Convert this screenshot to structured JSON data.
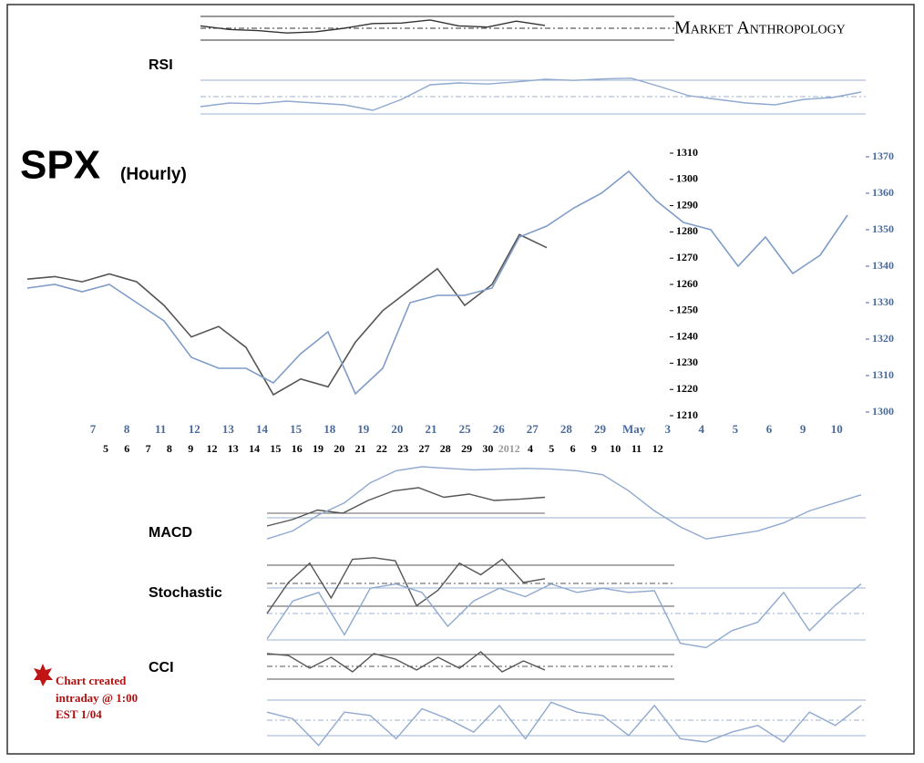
{
  "brand": "Market Anthropology",
  "note": [
    "Chart created",
    "intraday @ 1:00",
    "EST 1/04"
  ],
  "chart_data": {
    "type": "line",
    "title": "SPX",
    "subtitle": "(Hourly)",
    "ylim": [
      1210,
      1310
    ],
    "yticks": [
      1210,
      1220,
      1230,
      1240,
      1250,
      1260,
      1270,
      1280,
      1290,
      1300,
      1310
    ],
    "y2lim": [
      1300,
      1370
    ],
    "y2ticks": [
      1300,
      1310,
      1320,
      1330,
      1340,
      1350,
      1360,
      1370
    ],
    "x_labels_top": [
      "7",
      "8",
      "11",
      "12",
      "13",
      "14",
      "15",
      "18",
      "19",
      "20",
      "21",
      "25",
      "26",
      "27",
      "28",
      "29",
      "May",
      "3",
      "4",
      "5",
      "6",
      "9",
      "10"
    ],
    "x_labels_bottom": [
      "5",
      "6",
      "7",
      "8",
      "9",
      "12",
      "13",
      "14",
      "15",
      "16",
      "19",
      "20",
      "21",
      "22",
      "23",
      "27",
      "28",
      "29",
      "30",
      "2012",
      "4",
      "5",
      "6",
      "9",
      "10",
      "11",
      "12"
    ],
    "series": [
      {
        "color": "#555555",
        "values": [
          1262,
          1263,
          1261,
          1264,
          1261,
          1252,
          1240,
          1244,
          1236,
          1218,
          1224,
          1221,
          1238,
          1250,
          1258,
          1266,
          1252,
          1260,
          1279,
          1274,
          null,
          null,
          null,
          null,
          null,
          null,
          null,
          null,
          null,
          null,
          null
        ]
      },
      {
        "color": "#7f9cc8",
        "axis": "y2",
        "values": [
          1334,
          1335,
          1333,
          1335,
          1330,
          1325,
          1315,
          1312,
          1312,
          1308,
          1316,
          1322,
          1305,
          1312,
          1330,
          1332,
          1332,
          1334,
          1348,
          1351,
          1356,
          1360,
          1366,
          1358,
          1352,
          1350,
          1340,
          1348,
          1338,
          1343,
          1354
        ]
      }
    ]
  },
  "indicators": [
    {
      "label": "RSI",
      "ylim": [
        0,
        100
      ],
      "series": [
        {
          "color": "#333333",
          "values": [
            60,
            45,
            40,
            30,
            35,
            50,
            70,
            72,
            85,
            60,
            55,
            80,
            62
          ]
        },
        {
          "color": "#8fa9cf",
          "values": [
            20,
            30,
            28,
            35,
            30,
            25,
            10,
            40,
            80,
            85,
            82,
            88,
            95,
            92,
            96,
            98,
            75,
            50,
            40,
            30,
            25,
            40,
            45,
            60
          ]
        }
      ]
    },
    {
      "label": "MACD",
      "ylim": [
        0,
        100
      ],
      "series": [
        {
          "color": "#555555",
          "values": [
            30,
            40,
            55,
            50,
            70,
            85,
            90,
            75,
            80,
            70,
            72,
            75
          ]
        },
        {
          "color": "#8fa9cf",
          "values": [
            10,
            20,
            40,
            55,
            80,
            95,
            100,
            98,
            96,
            97,
            98,
            97,
            95,
            90,
            70,
            45,
            25,
            10,
            15,
            20,
            30,
            45,
            55,
            65
          ]
        }
      ]
    },
    {
      "label": "Stochastic",
      "ylim": [
        0,
        100
      ],
      "series": [
        {
          "color": "#555555",
          "values": [
            20,
            60,
            85,
            40,
            90,
            92,
            88,
            30,
            50,
            85,
            70,
            90,
            60,
            65
          ]
        },
        {
          "color": "#8fa9cf",
          "values": [
            15,
            60,
            70,
            20,
            75,
            80,
            70,
            30,
            60,
            75,
            65,
            80,
            70,
            75,
            70,
            72,
            10,
            5,
            25,
            35,
            70,
            25,
            55,
            80
          ]
        }
      ]
    },
    {
      "label": "CCI",
      "ylim": [
        0,
        100
      ],
      "series": [
        {
          "color": "#555555",
          "values": [
            70,
            65,
            30,
            60,
            20,
            70,
            55,
            25,
            60,
            30,
            75,
            20,
            50,
            25
          ]
        },
        {
          "color": "#8fa9cf",
          "values": [
            60,
            50,
            10,
            60,
            55,
            20,
            65,
            50,
            30,
            70,
            20,
            75,
            60,
            55,
            25,
            70,
            20,
            15,
            30,
            40,
            15,
            60,
            40,
            70
          ]
        }
      ]
    }
  ]
}
